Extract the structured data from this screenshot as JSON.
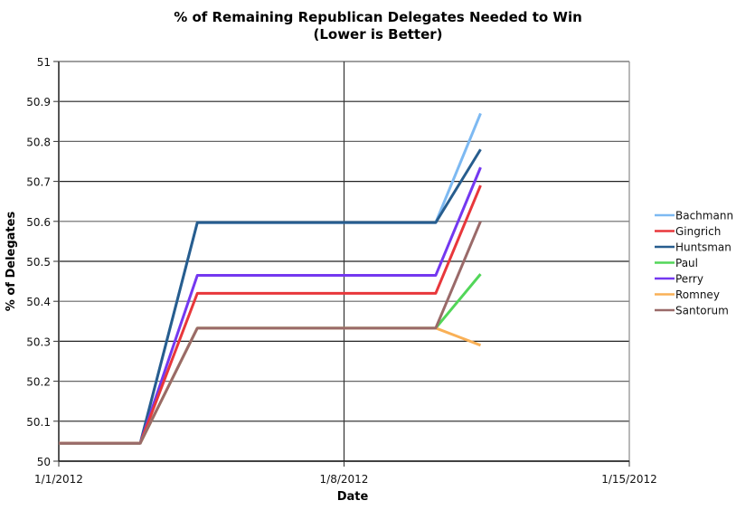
{
  "chart_data": {
    "type": "line",
    "title": "% of Remaining Republican Delegates Needed to Win",
    "subtitle": "(Lower is Better)",
    "xlabel": "Date",
    "ylabel": "% of Delegates",
    "ylim": [
      50,
      51
    ],
    "yticks": [
      "50",
      "50.1",
      "50.2",
      "50.3",
      "50.4",
      "50.5",
      "50.6",
      "50.7",
      "50.8",
      "50.9",
      "51"
    ],
    "xticks": [
      "1/1/2012",
      "1/8/2012",
      "1/15/2012"
    ],
    "xrange_days": [
      0,
      14
    ],
    "x_days": [
      0,
      2,
      3.4,
      9.25,
      10.35
    ],
    "grid": true,
    "legend_position": "right",
    "series": [
      {
        "name": "Bachmann",
        "color": "#7db9f2",
        "values": [
          50.045,
          50.045,
          50.597,
          50.597,
          50.87
        ]
      },
      {
        "name": "Gingrich",
        "color": "#e8373b",
        "values": [
          50.045,
          50.045,
          50.42,
          50.42,
          50.69
        ]
      },
      {
        "name": "Huntsman",
        "color": "#275d8e",
        "values": [
          50.045,
          50.045,
          50.597,
          50.597,
          50.78
        ]
      },
      {
        "name": "Paul",
        "color": "#52d659",
        "values": [
          50.045,
          50.045,
          50.333,
          50.333,
          50.468
        ]
      },
      {
        "name": "Perry",
        "color": "#7438f0",
        "values": [
          50.045,
          50.045,
          50.465,
          50.465,
          50.735
        ]
      },
      {
        "name": "Romney",
        "color": "#f9b056",
        "values": [
          50.045,
          50.045,
          50.333,
          50.333,
          50.29
        ]
      },
      {
        "name": "Santorum",
        "color": "#9a6a69",
        "values": [
          50.045,
          50.045,
          50.333,
          50.333,
          50.6
        ]
      }
    ]
  }
}
